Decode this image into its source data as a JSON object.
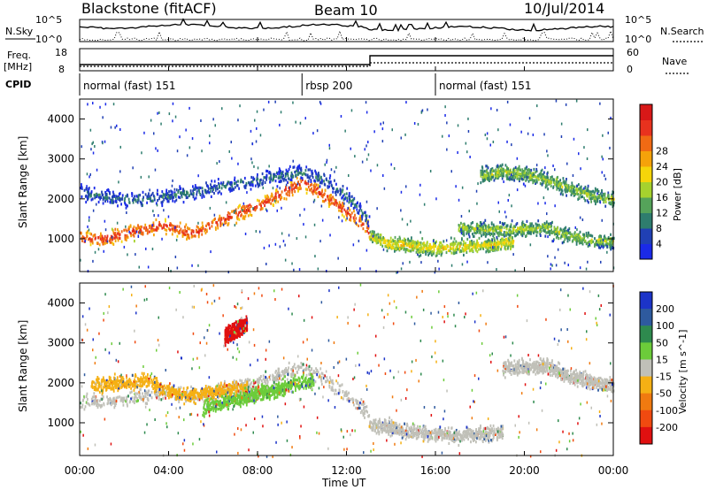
{
  "header": {
    "station": "Blackstone (fitACF)",
    "beam": "Beam 10",
    "date": "10/Jul/2014"
  },
  "side_labels": {
    "nsky": "N.Sky",
    "nsearch": "N.Search",
    "freq_line1": "Freq.",
    "freq_line2": "[MHz]",
    "nave": "Nave",
    "cpid": "CPID"
  },
  "small_axes": {
    "noise_left": [
      "10^5",
      "10^0"
    ],
    "noise_right": [
      "10^5",
      "10^0"
    ],
    "freq_left": [
      "18",
      "8"
    ],
    "nave_right": [
      "60",
      "0"
    ]
  },
  "cpid_segments": [
    {
      "label": "normal (fast) 151",
      "start_hour": 0
    },
    {
      "label": "rbsp 200",
      "start_hour": 10
    },
    {
      "label": "normal (fast) 151",
      "start_hour": 16
    }
  ],
  "chart_data": [
    {
      "type": "heatmap",
      "title": "",
      "ylabel": "Slant Range [km]",
      "xlabel": "",
      "x_ticks": [
        "00:00",
        "04:00",
        "08:00",
        "12:00",
        "16:00",
        "20:00",
        "00:00"
      ],
      "x_range_hours": [
        0,
        24
      ],
      "y_ticks": [
        1000,
        2000,
        3000,
        4000
      ],
      "ylim": [
        180,
        4500
      ],
      "colorbar": {
        "label": "Power [dB]",
        "ticks": [
          "4",
          "8",
          "12",
          "16",
          "20",
          "24",
          "28"
        ],
        "colors": [
          "#1a2ae8",
          "#2040b4",
          "#2e7d6e",
          "#55a35a",
          "#a6d22e",
          "#f5d50a",
          "#f5a20a",
          "#f06a14",
          "#e8321e",
          "#d81818"
        ]
      },
      "features": [
        {
          "name": "main-echo-band",
          "hours": [
            0,
            1,
            2,
            3,
            4,
            5,
            6,
            7,
            8,
            9,
            10,
            11,
            12,
            13
          ],
          "range_km": [
            1050,
            1000,
            1150,
            1300,
            1350,
            1150,
            1400,
            1650,
            1850,
            2150,
            2450,
            2100,
            1700,
            1250
          ],
          "peak_db": 28
        },
        {
          "name": "outer-echo-band",
          "hours": [
            0,
            2,
            4,
            6,
            8,
            10,
            11,
            12,
            13
          ],
          "range_km": [
            2200,
            2000,
            2100,
            2300,
            2500,
            2700,
            2500,
            2100,
            1500
          ],
          "peak_db": 10
        },
        {
          "name": "afternoon-near-band",
          "hours": [
            13,
            14,
            16,
            18,
            19.5
          ],
          "range_km": [
            1100,
            900,
            800,
            850,
            950
          ],
          "peak_db": 20
        },
        {
          "name": "evening-far-band",
          "hours": [
            18,
            19,
            20,
            21,
            22,
            23,
            24
          ],
          "range_km": [
            2600,
            2700,
            2650,
            2500,
            2300,
            2100,
            2000
          ],
          "peak_db": 14
        },
        {
          "name": "evening-near-band",
          "hours": [
            17,
            19,
            21,
            22,
            23,
            24
          ],
          "range_km": [
            1300,
            1250,
            1300,
            1100,
            1000,
            950
          ],
          "peak_db": 14
        }
      ]
    },
    {
      "type": "heatmap",
      "title": "",
      "ylabel": "Slant Range [km]",
      "xlabel": "Time UT",
      "x_ticks": [
        "00:00",
        "04:00",
        "08:00",
        "12:00",
        "16:00",
        "20:00",
        "00:00"
      ],
      "x_range_hours": [
        0,
        24
      ],
      "y_ticks": [
        1000,
        2000,
        3000,
        4000
      ],
      "ylim": [
        180,
        4500
      ],
      "colorbar": {
        "label": "Velocity [m s^-1]",
        "ticks": [
          "200",
          "100",
          "50",
          "15",
          "-15",
          "-50",
          "-100",
          "-200"
        ],
        "colors": [
          "#1c34c8",
          "#2e5a9e",
          "#2e8a4e",
          "#6ccc3a",
          "#c0c0b8",
          "#f5b014",
          "#f07a10",
          "#f04a10",
          "#e01010"
        ]
      },
      "features": [
        {
          "name": "ground-scatter-band",
          "hours": [
            0,
            1,
            2,
            3,
            4,
            5,
            6,
            7,
            8,
            9,
            10,
            11,
            12,
            13
          ],
          "range_km": [
            1600,
            1550,
            1600,
            1700,
            1800,
            1700,
            1800,
            1900,
            2050,
            2250,
            2400,
            2100,
            1700,
            1300
          ],
          "color_group": "-15..15"
        },
        {
          "name": "morning-orange-streaks",
          "hours": [
            0.5,
            1.5,
            3,
            4.5,
            7.5
          ],
          "range_km": [
            2000,
            2000,
            2100,
            1700,
            1900
          ],
          "color_group": "-50"
        },
        {
          "name": "red-plume",
          "hours": [
            6.5,
            7.5
          ],
          "range_km": [
            3200,
            3500
          ],
          "color_group": "-200"
        },
        {
          "name": "green-patch",
          "hours": [
            5.5,
            10.5
          ],
          "range_km": [
            1400,
            2100
          ],
          "color_group": "50"
        },
        {
          "name": "afternoon-gray-band",
          "hours": [
            13,
            15,
            17,
            19
          ],
          "range_km": [
            1000,
            800,
            700,
            800
          ],
          "color_group": "-15..15"
        },
        {
          "name": "evening-gray-band",
          "hours": [
            19,
            21,
            22,
            23,
            24
          ],
          "range_km": [
            2400,
            2450,
            2200,
            2050,
            1950
          ],
          "color_group": "-15..15"
        }
      ]
    }
  ]
}
